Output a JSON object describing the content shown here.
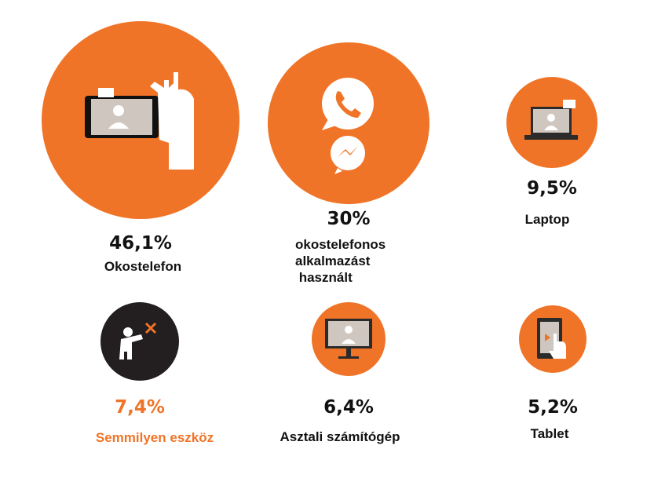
{
  "chart_data": {
    "type": "bubble",
    "unit": "%",
    "items": [
      {
        "key": "okostelefon",
        "value": 46.1,
        "value_label": "46,1%",
        "label": "Okostelefon",
        "icon": "smartphone-hand-icon",
        "color": "#f07427"
      },
      {
        "key": "app",
        "value": 30,
        "value_label": "30%",
        "label_lines": [
          "okostelefonos",
          "alkalmazást",
          " használt"
        ],
        "icon": "whatsapp-messenger-icon",
        "color": "#f07427"
      },
      {
        "key": "laptop",
        "value": 9.5,
        "value_label": "9,5%",
        "label": "Laptop",
        "icon": "laptop-icon",
        "color": "#f07427"
      },
      {
        "key": "semmilyen",
        "value": 7.4,
        "value_label": "7,4%",
        "label": "Semmilyen eszköz",
        "icon": "no-device-person-icon",
        "color": "#231f20",
        "text_color": "#f07427"
      },
      {
        "key": "asztali",
        "value": 6.4,
        "value_label": "6,4%",
        "label": "Asztali számítógép",
        "icon": "desktop-monitor-icon",
        "color": "#f07427"
      },
      {
        "key": "tablet",
        "value": 5.2,
        "value_label": "5,2%",
        "label": "Tablet",
        "icon": "tablet-touch-icon",
        "color": "#f07427"
      }
    ]
  }
}
